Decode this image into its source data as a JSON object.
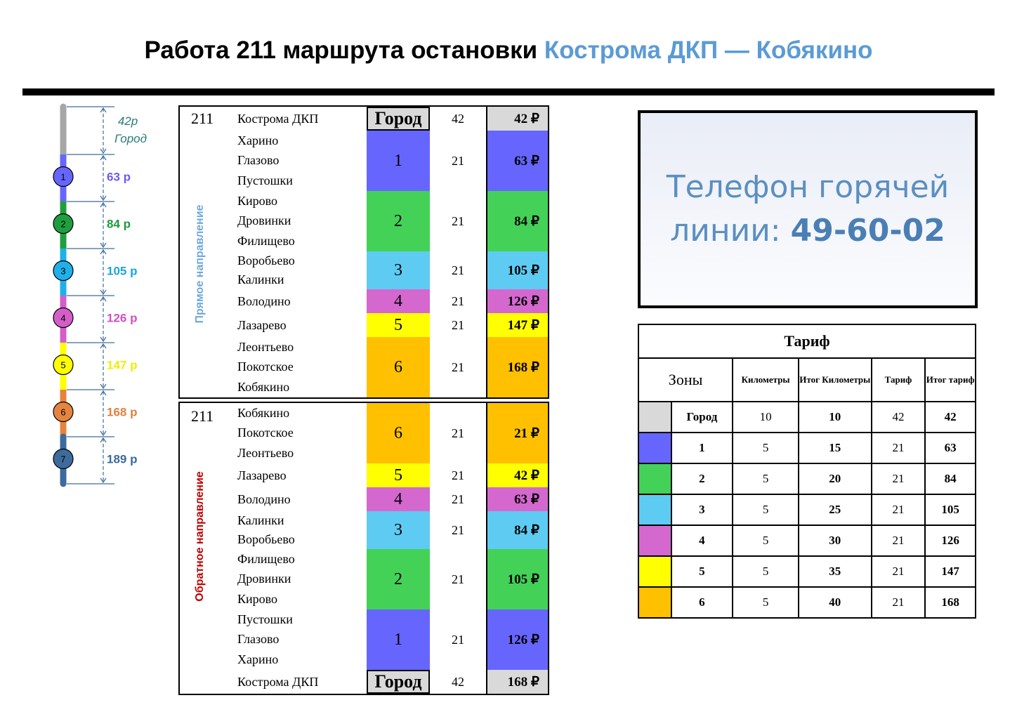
{
  "header": {
    "title": "Работа 211 маршрута остановки",
    "title_highlight": "Кострома ДКП — Кобякино"
  },
  "scale": {
    "city_fare": "42р",
    "city_label": "Город",
    "city_color": "#a6a6a6",
    "zones": [
      {
        "number": "1",
        "fare": "63 р",
        "color": "#6666ff",
        "label_color": "#6a5af9"
      },
      {
        "number": "2",
        "fare": "84 р",
        "color": "#1f9e3e",
        "label_color": "#1a9a3a"
      },
      {
        "number": "3",
        "fare": "105 р",
        "color": "#1fb0ea",
        "label_color": "#1aa3e0"
      },
      {
        "number": "4",
        "fare": "126 р",
        "color": "#d45ec8",
        "label_color": "#d050c0"
      },
      {
        "number": "5",
        "fare": "147 р",
        "color": "#ffff00",
        "label_color": "#eeee00"
      },
      {
        "number": "6",
        "fare": "168 р",
        "color": "#e6843f",
        "label_color": "#e08040"
      },
      {
        "number": "7",
        "fare": "189 р",
        "color": "#3d6c9c",
        "label_color": "#3a6a9a"
      }
    ]
  },
  "forward": {
    "route": "211",
    "direction": "Прямое направление",
    "rows": [
      {
        "zone": "Город",
        "stops": [
          "Кострома ДКП"
        ],
        "km": "42",
        "fare": "42 ₽",
        "color": "#d9d9d9"
      },
      {
        "zone": "1",
        "stops": [
          "Харино",
          "Глазово",
          "Пустошки"
        ],
        "km": "21",
        "fare": "63 ₽",
        "color": "#6666ff"
      },
      {
        "zone": "2",
        "stops": [
          "Кирово",
          "Дровинки",
          "Филищево"
        ],
        "km": "21",
        "fare": "84 ₽",
        "color": "#44d157"
      },
      {
        "zone": "3",
        "stops": [
          "Воробьево",
          "Калинки"
        ],
        "km": "21",
        "fare": "105 ₽",
        "color": "#5ecbf2"
      },
      {
        "zone": "4",
        "stops": [
          "Володино"
        ],
        "km": "21",
        "fare": "126 ₽",
        "color": "#d468cf"
      },
      {
        "zone": "5",
        "stops": [
          "Лазарево"
        ],
        "km": "21",
        "fare": "147 ₽",
        "color": "#ffff00"
      },
      {
        "zone": "6",
        "stops": [
          "Леонтьево",
          "Покотское",
          "Кобякино"
        ],
        "km": "21",
        "fare": "168 ₽",
        "color": "#ffc000"
      }
    ]
  },
  "backward": {
    "route": "211",
    "direction": "Обратное направление",
    "rows": [
      {
        "zone": "6",
        "stops": [
          "Кобякино",
          "Покотское",
          "Леонтьево"
        ],
        "km": "21",
        "fare": "21 ₽",
        "color": "#ffc000"
      },
      {
        "zone": "5",
        "stops": [
          "Лазарево"
        ],
        "km": "21",
        "fare": "42 ₽",
        "color": "#ffff00"
      },
      {
        "zone": "4",
        "stops": [
          "Володино"
        ],
        "km": "21",
        "fare": "63 ₽",
        "color": "#d468cf"
      },
      {
        "zone": "3",
        "stops": [
          "Калинки",
          "Воробьево"
        ],
        "km": "21",
        "fare": "84 ₽",
        "color": "#5ecbf2"
      },
      {
        "zone": "2",
        "stops": [
          "Филищево",
          "Дровинки",
          "Кирово"
        ],
        "km": "21",
        "fare": "105 ₽",
        "color": "#44d157"
      },
      {
        "zone": "1",
        "stops": [
          "Пустошки",
          "Глазово",
          "Харино"
        ],
        "km": "21",
        "fare": "126 ₽",
        "color": "#6666ff"
      },
      {
        "zone": "Город",
        "stops": [
          "Кострома ДКП"
        ],
        "km": "42",
        "fare": "168 ₽",
        "color": "#d9d9d9"
      }
    ]
  },
  "hotline": {
    "label": "Телефон горячей линии:",
    "number": "49-60-02"
  },
  "tariff": {
    "title": "Тариф",
    "headers": [
      "Зоны",
      "Километры",
      "Итог Километры",
      "Тариф",
      "Итог тариф"
    ],
    "rows": [
      {
        "color": "#d9d9d9",
        "zone": "Город",
        "km": 10,
        "total_km": 10,
        "tariff": 42,
        "total_tariff": 42
      },
      {
        "color": "#6666ff",
        "zone": "1",
        "km": 5,
        "total_km": 15,
        "tariff": 21,
        "total_tariff": 63
      },
      {
        "color": "#44d157",
        "zone": "2",
        "km": 5,
        "total_km": 20,
        "tariff": 21,
        "total_tariff": 84
      },
      {
        "color": "#5ecbf2",
        "zone": "3",
        "km": 5,
        "total_km": 25,
        "tariff": 21,
        "total_tariff": 105
      },
      {
        "color": "#d468cf",
        "zone": "4",
        "km": 5,
        "total_km": 30,
        "tariff": 21,
        "total_tariff": 126
      },
      {
        "color": "#ffff00",
        "zone": "5",
        "km": 5,
        "total_km": 35,
        "tariff": 21,
        "total_tariff": 147
      },
      {
        "color": "#ffc000",
        "zone": "6",
        "km": 5,
        "total_km": 40,
        "tariff": 21,
        "total_tariff": 168
      }
    ]
  }
}
